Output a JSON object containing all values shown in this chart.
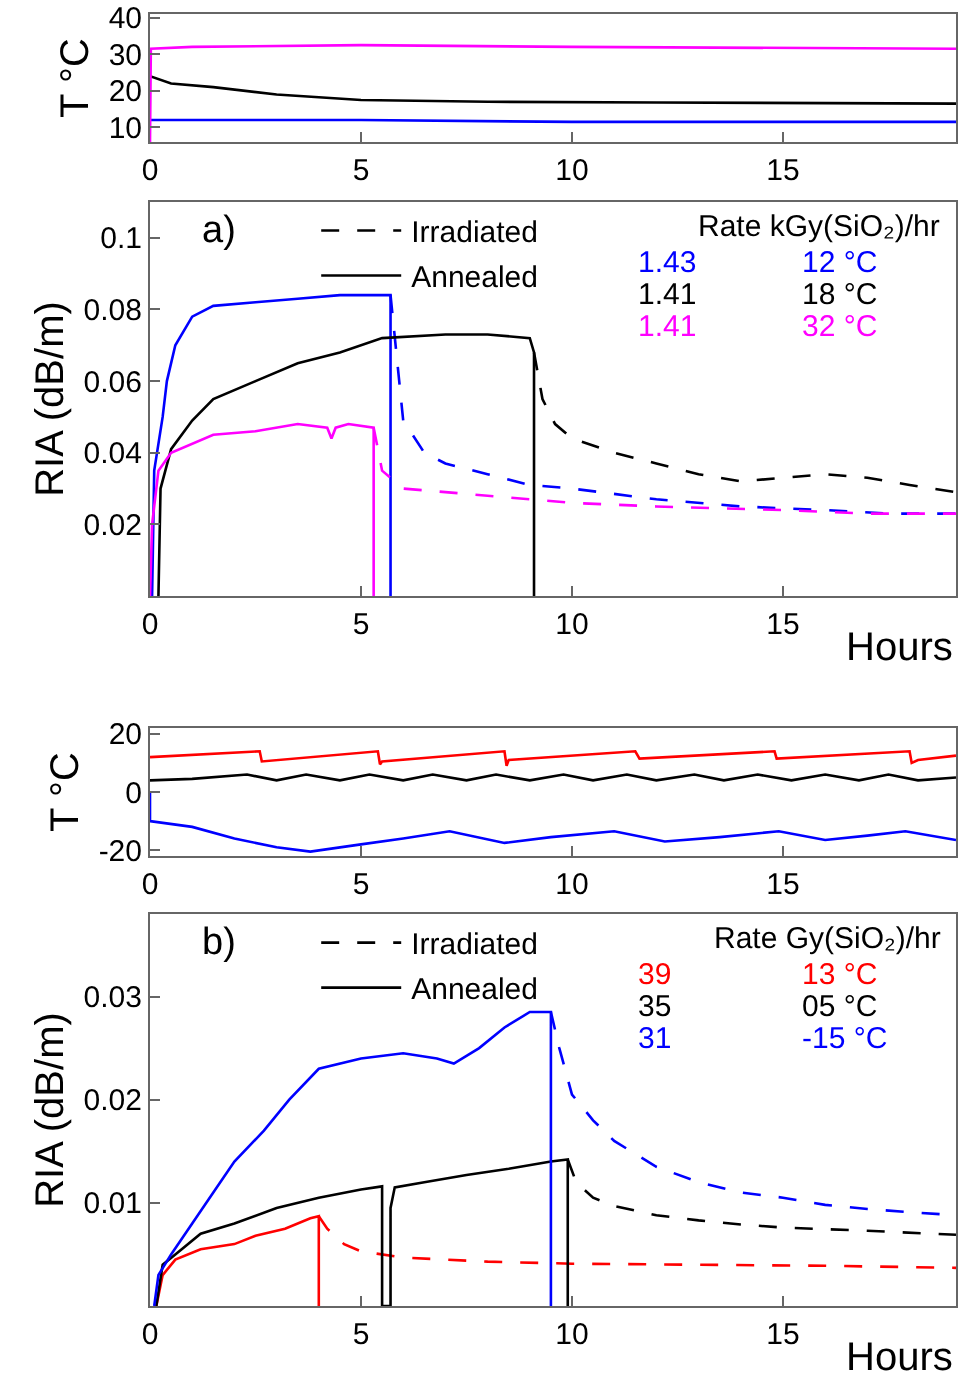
{
  "chart_data": [
    {
      "type": "line",
      "ylabel": "T °C",
      "xlim": [
        0,
        19.1
      ],
      "xticks": [
        0,
        5,
        10,
        15
      ],
      "ylim": [
        6,
        41
      ],
      "yticks": [
        10,
        20,
        30,
        40
      ],
      "grid": false,
      "legend": false,
      "series": [
        {
          "color": "#0000ff",
          "line_style": "solid",
          "x": [
            0,
            5,
            10,
            19.1
          ],
          "values": [
            12,
            12,
            11.5,
            11.5
          ]
        },
        {
          "color": "#000000",
          "line_style": "solid",
          "x": [
            0,
            0.5,
            1.5,
            3,
            5,
            8,
            12,
            19.1
          ],
          "values": [
            24,
            22,
            21,
            19,
            17.5,
            17,
            16.8,
            16.5
          ]
        },
        {
          "color": "#ff00ff",
          "line_style": "solid",
          "x": [
            0,
            0.02,
            1,
            5,
            10,
            19.1
          ],
          "values": [
            6,
            31.5,
            32,
            32.5,
            32,
            31.5
          ]
        }
      ]
    },
    {
      "type": "line",
      "ylabel": "RIA (dB/m)",
      "xlabel": "Hours",
      "xlim": [
        0,
        19.1
      ],
      "xticks": [
        0,
        5,
        10,
        15
      ],
      "ylim": [
        0,
        0.11
      ],
      "yticks": [
        0.02,
        0.04,
        0.06,
        0.08,
        0.1
      ],
      "grid": false,
      "legend": "top left",
      "annotations": [
        "a)",
        "Rate kGy(SiO₂)/hr",
        "1.43",
        "12 °C",
        "1.41",
        "18 °C",
        "1.41",
        "32 °C"
      ],
      "series": [
        {
          "color": "#0000ff",
          "line_style": "solid",
          "x": [
            0.05,
            0.1,
            0.3,
            0.4,
            0.6,
            1,
            1.5,
            2.5,
            3.5,
            4.5,
            5.7,
            5.7
          ],
          "values": [
            0,
            0.035,
            0.05,
            0.06,
            0.07,
            0.078,
            0.081,
            0.082,
            0.083,
            0.084,
            0.084,
            0
          ]
        },
        {
          "color": "#0000ff",
          "line_style": "dashed",
          "x": [
            5.7,
            6,
            6.5,
            7,
            8,
            9,
            10,
            12,
            14,
            16,
            17.5,
            19.1
          ],
          "values": [
            0.084,
            0.049,
            0.04,
            0.037,
            0.034,
            0.031,
            0.03,
            0.027,
            0.025,
            0.024,
            0.023,
            0.023
          ]
        },
        {
          "name": "Irradiated",
          "color": "#000000",
          "line_style": "dashed",
          "x": [
            9.1,
            9.3,
            9.6,
            10,
            11,
            12,
            13,
            14,
            15,
            16,
            17,
            18,
            19.1
          ],
          "values": [
            0.068,
            0.055,
            0.048,
            0.044,
            0.04,
            0.037,
            0.034,
            0.032,
            0.033,
            0.034,
            0.033,
            0.031,
            0.029
          ]
        },
        {
          "name": "Annealed",
          "color": "#000000",
          "line_style": "solid",
          "x": [
            0.2,
            0.25,
            0.5,
            1,
            1.5,
            2.5,
            3.5,
            4.5,
            5.5,
            7,
            8,
            9,
            9.1,
            9.1
          ],
          "values": [
            0,
            0.03,
            0.041,
            0.049,
            0.055,
            0.06,
            0.065,
            0.068,
            0.072,
            0.073,
            0.073,
            0.072,
            0.068,
            0
          ]
        },
        {
          "color": "#ff00ff",
          "line_style": "solid",
          "x": [
            0,
            0.05,
            0.2,
            0.5,
            1.5,
            2.5,
            3.5,
            4.2,
            4.3,
            4.4,
            4.7,
            5.3,
            5.3
          ],
          "values": [
            0,
            0.02,
            0.035,
            0.04,
            0.045,
            0.046,
            0.048,
            0.047,
            0.044,
            0.047,
            0.048,
            0.047,
            0
          ]
        },
        {
          "color": "#ff00ff",
          "line_style": "dashed",
          "x": [
            5.3,
            5.5,
            6,
            7,
            8,
            10,
            12,
            15,
            17,
            19.1
          ],
          "values": [
            0.047,
            0.035,
            0.03,
            0.029,
            0.028,
            0.026,
            0.025,
            0.024,
            0.023,
            0.023
          ]
        }
      ]
    },
    {
      "type": "line",
      "ylabel": "T °C",
      "xlim": [
        0,
        19.1
      ],
      "xticks": [
        0,
        5,
        10,
        15
      ],
      "ylim": [
        -22,
        22
      ],
      "yticks": [
        -20,
        0,
        20
      ],
      "grid": false,
      "legend": false,
      "series": [
        {
          "color": "#ff0000",
          "line_style": "solid",
          "x": [
            0,
            2.6,
            2.65,
            5.4,
            5.45,
            5.5,
            8.4,
            8.45,
            8.5,
            11.5,
            11.6,
            14.8,
            14.85,
            18,
            18.05,
            18.2,
            19.1
          ],
          "values": [
            12,
            14,
            10.5,
            14,
            9.5,
            10.5,
            14,
            9,
            11,
            14,
            11.5,
            14,
            11.5,
            14,
            10,
            11,
            12.5
          ]
        },
        {
          "color": "#000000",
          "line_style": "solid",
          "x": [
            0,
            1,
            2.3,
            3,
            3.7,
            4.5,
            5.2,
            6,
            6.7,
            7.5,
            8.2,
            9,
            9.8,
            10.5,
            11.3,
            12,
            12.9,
            13.6,
            14.4,
            15.2,
            16,
            16.8,
            17.5,
            18.2,
            19.1
          ],
          "values": [
            4,
            4.5,
            6,
            4,
            6,
            4,
            6,
            4,
            6,
            4,
            6,
            4,
            6,
            4,
            6,
            4,
            6,
            4,
            6,
            4,
            6,
            4,
            6,
            4,
            5
          ]
        },
        {
          "color": "#0000ff",
          "line_style": "solid",
          "x": [
            0,
            0,
            1,
            2,
            3,
            3.8,
            5,
            6,
            7.1,
            8.4,
            9.5,
            11,
            12.2,
            13.5,
            14.9,
            16,
            17,
            17.9,
            19.1
          ],
          "values": [
            0,
            -10,
            -12,
            -16,
            -19,
            -20.5,
            -18,
            -16,
            -13.5,
            -17.5,
            -15.5,
            -13.5,
            -17,
            -15.5,
            -13.5,
            -16.5,
            -15,
            -13.5,
            -16.5
          ]
        }
      ]
    },
    {
      "type": "line",
      "ylabel": "RIA (dB/m)",
      "xlabel": "Hours",
      "xlim": [
        0,
        19.1
      ],
      "xticks": [
        0,
        5,
        10,
        15
      ],
      "ylim": [
        0,
        0.038
      ],
      "yticks": [
        0.01,
        0.02,
        0.03
      ],
      "grid": false,
      "legend": "top left",
      "annotations": [
        "b)",
        "Rate Gy(SiO₂)/hr",
        "39",
        "13 °C",
        "35",
        "05 °C",
        "31",
        "-15 °C"
      ],
      "series": [
        {
          "color": "#ff0000",
          "line_style": "solid",
          "x": [
            0.15,
            0.3,
            0.6,
            1.2,
            2,
            2.5,
            3.2,
            3.8,
            4,
            4
          ],
          "values": [
            0,
            0.003,
            0.0045,
            0.0055,
            0.006,
            0.0068,
            0.0075,
            0.0085,
            0.0087,
            0
          ]
        },
        {
          "color": "#ff0000",
          "line_style": "dashed",
          "x": [
            4,
            4.2,
            4.6,
            5,
            6,
            8,
            10,
            13,
            16,
            19.1
          ],
          "values": [
            0.0087,
            0.0075,
            0.006,
            0.0053,
            0.0047,
            0.0043,
            0.0041,
            0.004,
            0.0039,
            0.0037
          ]
        },
        {
          "name": "Irradiated",
          "color": "#000000",
          "line_style": "dashed",
          "x": [
            9.9,
            10.1,
            10.5,
            11,
            12,
            13,
            14,
            15,
            17,
            19.1
          ],
          "values": [
            0.0142,
            0.012,
            0.0105,
            0.0097,
            0.0088,
            0.0083,
            0.0079,
            0.0076,
            0.0073,
            0.0069
          ]
        },
        {
          "name": "Annealed",
          "color": "#000000",
          "line_style": "solid",
          "x": [
            0.15,
            0.3,
            0.6,
            1.2,
            2,
            3,
            4,
            5,
            5.5,
            5.5,
            5.7,
            5.7,
            5.8,
            6.5,
            7.5,
            8.5,
            9.5,
            9.9,
            9.9
          ],
          "values": [
            0,
            0.004,
            0.005,
            0.007,
            0.008,
            0.0095,
            0.0105,
            0.0113,
            0.0116,
            0,
            0,
            0.0095,
            0.0115,
            0.012,
            0.0127,
            0.0133,
            0.014,
            0.0142,
            0
          ]
        },
        {
          "color": "#0000ff",
          "line_style": "solid",
          "x": [
            0.1,
            0.2,
            0.5,
            1,
            1.5,
            2,
            2.7,
            3.3,
            4,
            5,
            6,
            6.8,
            7.2,
            7.8,
            8.4,
            9,
            9.5,
            9.5
          ],
          "values": [
            0,
            0.003,
            0.005,
            0.008,
            0.011,
            0.014,
            0.017,
            0.02,
            0.023,
            0.024,
            0.0245,
            0.024,
            0.0235,
            0.025,
            0.027,
            0.0285,
            0.0285,
            0
          ]
        },
        {
          "color": "#0000ff",
          "line_style": "dashed",
          "x": [
            9.5,
            9.7,
            10,
            10.5,
            11,
            12,
            13,
            14,
            15,
            16,
            17,
            18,
            19.1
          ],
          "values": [
            0.0285,
            0.025,
            0.0205,
            0.018,
            0.016,
            0.0135,
            0.012,
            0.011,
            0.0105,
            0.0098,
            0.0094,
            0.0091,
            0.0088
          ]
        }
      ]
    }
  ]
}
